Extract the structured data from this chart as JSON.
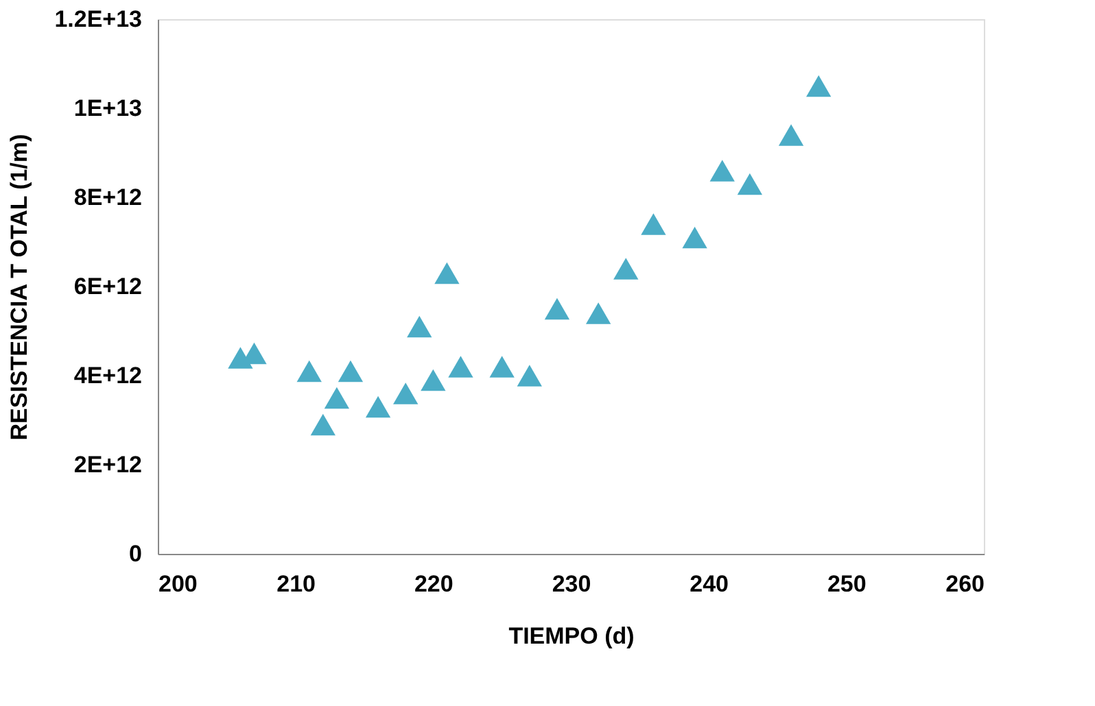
{
  "chart_data": {
    "type": "scatter",
    "xlabel": "TIEMPO (d)",
    "ylabel": "RESISTENCIA T OTAL (1/m)",
    "x": [
      206,
      207,
      211,
      212,
      213,
      214,
      216,
      218,
      219,
      220,
      221,
      222,
      225,
      227,
      229,
      232,
      234,
      236,
      239,
      241,
      243,
      246,
      248
    ],
    "values": [
      4400000000000.0,
      4500000000000.0,
      4100000000000.0,
      2900000000000.0,
      3500000000000.0,
      4100000000000.0,
      3300000000000.0,
      3600000000000.0,
      5100000000000.0,
      3900000000000.0,
      6300000000000.0,
      4200000000000.0,
      4200000000000.0,
      4000000000000.0,
      5500000000000.0,
      5400000000000.0,
      6400000000000.0,
      7400000000000.0,
      7100000000000.0,
      8600000000000.0,
      8300000000000.0,
      9400000000000.0,
      10500000000000.0
    ],
    "color": "#4bacc6",
    "marker": "triangle",
    "grid": false,
    "xlim": [
      200,
      260
    ],
    "xticks": [
      200,
      210,
      220,
      230,
      240,
      250,
      260
    ],
    "ylim": [
      0,
      12000000000000.0
    ],
    "yticks": [
      0,
      {
        "value": 2000000000000.0,
        "label": "2E+12"
      },
      {
        "value": 4000000000000.0,
        "label": "4E+12"
      },
      {
        "value": 6000000000000.0,
        "label": "6E+12"
      },
      {
        "value": 8000000000000.0,
        "label": "8E+12"
      },
      {
        "value": 10000000000000.0,
        "label": "1E+13"
      },
      {
        "value": 12000000000000.0,
        "label": "1.2E+13"
      }
    ]
  }
}
